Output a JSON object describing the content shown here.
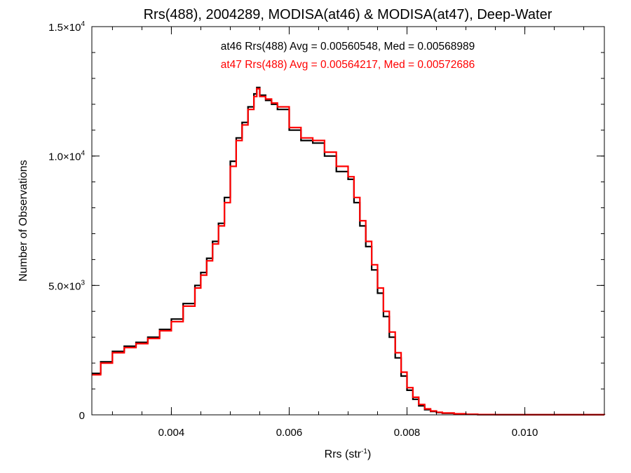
{
  "chart_data": {
    "type": "line",
    "step": true,
    "title": "Rrs(488), 2004289, MODISA(at46) & MODISA(at47), Deep-Water",
    "xlabel_main": "Rrs (str",
    "xlabel_sup": "-1",
    "xlabel_end": ")",
    "ylabel": "Number of Observations",
    "xlim": [
      0.00265,
      0.01135
    ],
    "ylim": [
      0,
      15000
    ],
    "x_ticks": [
      {
        "value": 0.004,
        "label": "0.004"
      },
      {
        "value": 0.006,
        "label": "0.006"
      },
      {
        "value": 0.008,
        "label": "0.008"
      },
      {
        "value": 0.01,
        "label": "0.010"
      }
    ],
    "y_ticks": [
      {
        "value": 0,
        "label": "0",
        "sup": ""
      },
      {
        "value": 5000,
        "label": "5.0×10",
        "sup": "3"
      },
      {
        "value": 10000,
        "label": "1.0×10",
        "sup": "4"
      },
      {
        "value": 15000,
        "label": "1.5×10",
        "sup": "4"
      }
    ],
    "x_minor_step": 0.0005,
    "y_minor_step": 1000,
    "annotations": [
      {
        "text": "at46 Rrs(488) Avg = 0.00560548, Med = 0.00568989",
        "color": "#000000"
      },
      {
        "text": "at47 Rrs(488) Avg = 0.00564217, Med = 0.00572686",
        "color": "#ff0000"
      }
    ],
    "series": [
      {
        "color": "#000000",
        "x": [
          0.00265,
          0.0028,
          0.003,
          0.0032,
          0.0034,
          0.0036,
          0.0038,
          0.004,
          0.0042,
          0.0044,
          0.0045,
          0.0046,
          0.0047,
          0.0048,
          0.0049,
          0.005,
          0.0051,
          0.0052,
          0.0053,
          0.0054,
          0.00545,
          0.0055,
          0.0056,
          0.0057,
          0.0058,
          0.006,
          0.0062,
          0.0064,
          0.0066,
          0.0068,
          0.007,
          0.0071,
          0.0072,
          0.0073,
          0.0074,
          0.0075,
          0.0076,
          0.0077,
          0.0078,
          0.0079,
          0.008,
          0.0081,
          0.0082,
          0.0083,
          0.0084,
          0.0085,
          0.0086,
          0.0088,
          0.009,
          0.0092,
          0.0095,
          0.01,
          0.01135
        ],
        "y": [
          1600,
          2050,
          2450,
          2650,
          2800,
          3000,
          3300,
          3700,
          4300,
          5000,
          5500,
          6050,
          6700,
          7400,
          8400,
          9800,
          10700,
          11300,
          11900,
          12400,
          12650,
          12350,
          12150,
          12000,
          11800,
          11000,
          10600,
          10500,
          10000,
          9400,
          9100,
          8200,
          7300,
          6500,
          5600,
          4700,
          3800,
          3000,
          2200,
          1500,
          950,
          600,
          350,
          200,
          130,
          90,
          60,
          35,
          20,
          10,
          5,
          2,
          0
        ]
      },
      {
        "color": "#ff0000",
        "x": [
          0.00265,
          0.0028,
          0.003,
          0.0032,
          0.0034,
          0.0036,
          0.0038,
          0.004,
          0.0042,
          0.0044,
          0.0045,
          0.0046,
          0.0047,
          0.0048,
          0.0049,
          0.005,
          0.0051,
          0.0052,
          0.0053,
          0.0054,
          0.00545,
          0.0055,
          0.0056,
          0.0057,
          0.0058,
          0.006,
          0.0062,
          0.0064,
          0.0066,
          0.0068,
          0.007,
          0.0071,
          0.0072,
          0.0073,
          0.0074,
          0.0075,
          0.0076,
          0.0077,
          0.0078,
          0.0079,
          0.008,
          0.0081,
          0.0082,
          0.0083,
          0.0084,
          0.0085,
          0.0086,
          0.0088,
          0.009,
          0.0092,
          0.0095,
          0.01,
          0.01135
        ],
        "y": [
          1550,
          2000,
          2400,
          2600,
          2750,
          2950,
          3250,
          3600,
          4200,
          4900,
          5400,
          5950,
          6600,
          7300,
          8200,
          9600,
          10600,
          11200,
          11800,
          12300,
          12600,
          12300,
          12200,
          12050,
          11900,
          11100,
          10700,
          10600,
          10150,
          9600,
          9200,
          8400,
          7500,
          6700,
          5800,
          4900,
          4000,
          3200,
          2400,
          1650,
          1050,
          680,
          400,
          230,
          150,
          100,
          70,
          40,
          22,
          12,
          6,
          2,
          0
        ]
      }
    ]
  }
}
